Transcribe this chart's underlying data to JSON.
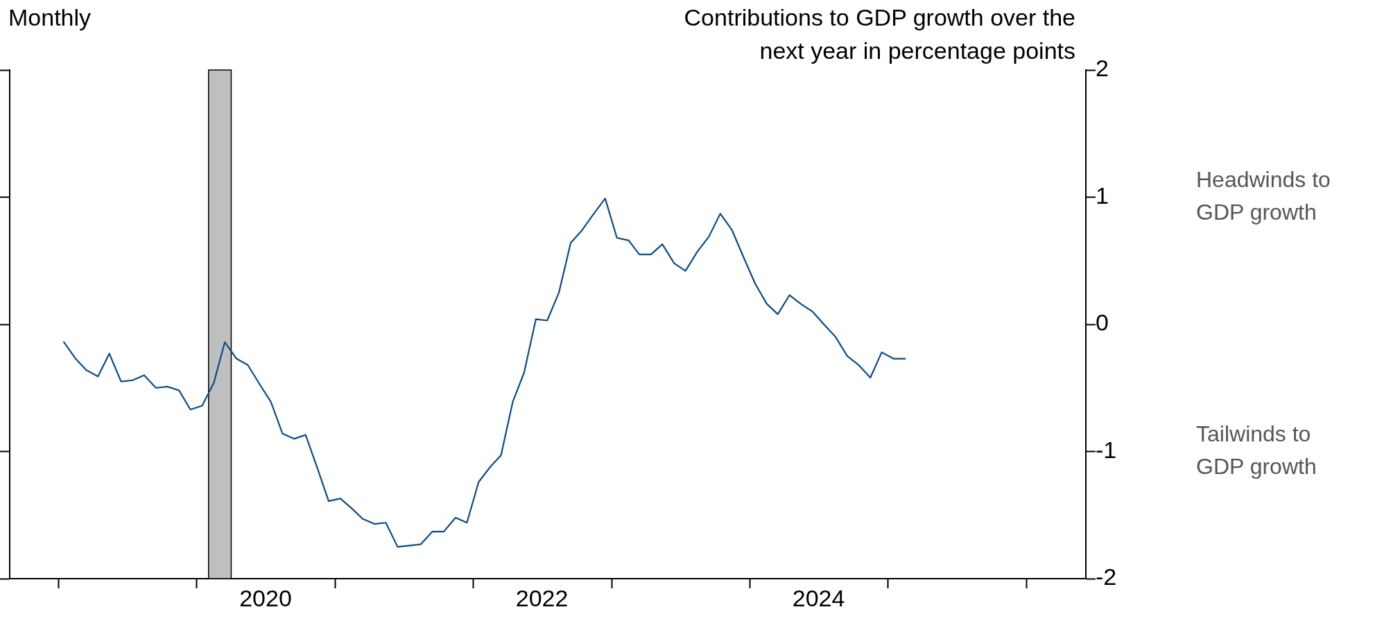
{
  "chart_data": {
    "type": "line",
    "ylabel": "Contributions to GDP growth over the next year in percentage points",
    "annotations": [
      "Monthly",
      "Headwinds to GDP growth",
      "Tailwinds to GDP growth"
    ],
    "x": [
      "2019-01-15",
      "2019-02-15",
      "2019-03-15",
      "2019-04-15",
      "2019-05-15",
      "2019-06-15",
      "2019-07-15",
      "2019-08-15",
      "2019-09-15",
      "2019-10-15",
      "2019-11-15",
      "2019-12-15",
      "2020-01-15",
      "2020-02-15",
      "2020-03-15",
      "2020-04-15",
      "2020-05-15",
      "2020-06-15",
      "2020-07-15",
      "2020-08-15",
      "2020-09-15",
      "2020-10-15",
      "2020-11-15",
      "2020-12-15",
      "2021-01-15",
      "2021-02-15",
      "2021-03-15",
      "2021-04-15",
      "2021-05-15",
      "2021-06-15",
      "2021-07-15",
      "2021-08-15",
      "2021-09-15",
      "2021-10-15",
      "2021-11-15",
      "2021-12-15",
      "2022-01-15",
      "2022-02-15",
      "2022-03-15",
      "2022-04-15",
      "2022-05-15",
      "2022-06-15",
      "2022-07-15",
      "2022-08-15",
      "2022-09-15",
      "2022-10-15",
      "2022-11-15",
      "2022-12-15",
      "2023-01-15",
      "2023-02-15",
      "2023-03-15",
      "2023-04-15",
      "2023-05-15",
      "2023-06-15",
      "2023-07-15",
      "2023-08-15",
      "2023-09-15",
      "2023-10-15",
      "2023-11-15",
      "2023-12-15",
      "2024-01-15",
      "2024-02-15",
      "2024-03-15",
      "2024-04-15",
      "2024-05-15",
      "2024-06-15",
      "2024-07-15",
      "2024-08-15",
      "2024-09-15",
      "2024-10-15",
      "2024-11-15",
      "2024-12-15",
      "2025-01-15",
      "2025-02-15"
    ],
    "series": [
      {
        "color": "#0b4a84",
        "values": [
          -0.14,
          -0.27,
          -0.36,
          -0.41,
          -0.23,
          -0.45,
          -0.44,
          -0.4,
          -0.5,
          -0.49,
          -0.52,
          -0.67,
          -0.64,
          -0.46,
          -0.14,
          -0.27,
          -0.32,
          -0.47,
          -0.61,
          -0.86,
          -0.9,
          -0.87,
          -1.13,
          -1.39,
          -1.37,
          -1.45,
          -1.53,
          -1.57,
          -1.56,
          -1.75,
          -1.74,
          -1.73,
          -1.63,
          -1.63,
          -1.52,
          -1.56,
          -1.24,
          -1.12,
          -1.03,
          -0.61,
          -0.38,
          0.04,
          0.03,
          0.25,
          0.64,
          0.74,
          0.87,
          0.99,
          0.68,
          0.66,
          0.55,
          0.55,
          0.63,
          0.48,
          0.42,
          0.57,
          0.69,
          0.87,
          0.74,
          0.53,
          0.32,
          0.16,
          0.08,
          0.23,
          0.16,
          0.1,
          0.0,
          -0.1,
          -0.25,
          -0.32,
          -0.42,
          -0.22,
          -0.27,
          -0.27
        ]
      }
    ],
    "xlim": [
      "2018-08-25",
      "2026-06-07"
    ],
    "xticks": [
      {
        "value": "2019-01-01",
        "label": null
      },
      {
        "value": "2020-01-01",
        "label": null
      },
      {
        "value": "2021-01-01",
        "label": null
      },
      {
        "value": "2022-01-01",
        "label": null
      },
      {
        "value": "2023-01-01",
        "label": null
      },
      {
        "value": "2024-01-01",
        "label": null
      },
      {
        "value": "2025-01-01",
        "label": null
      },
      {
        "value": "2026-01-01",
        "label": null
      },
      {
        "value": "2020-07-01",
        "label": "2020"
      },
      {
        "value": "2022-07-01",
        "label": "2022"
      },
      {
        "value": "2024-07-01",
        "label": "2024"
      }
    ],
    "ylim": [
      -2,
      2
    ],
    "yticks": [
      -2,
      -1,
      0,
      1,
      2
    ],
    "bands": [
      {
        "axis": "x",
        "from": "2020-02-01",
        "to": "2020-04-01",
        "color": "#bfbfbf"
      }
    ],
    "grid": false,
    "line_style": "solid",
    "marker": "none"
  }
}
